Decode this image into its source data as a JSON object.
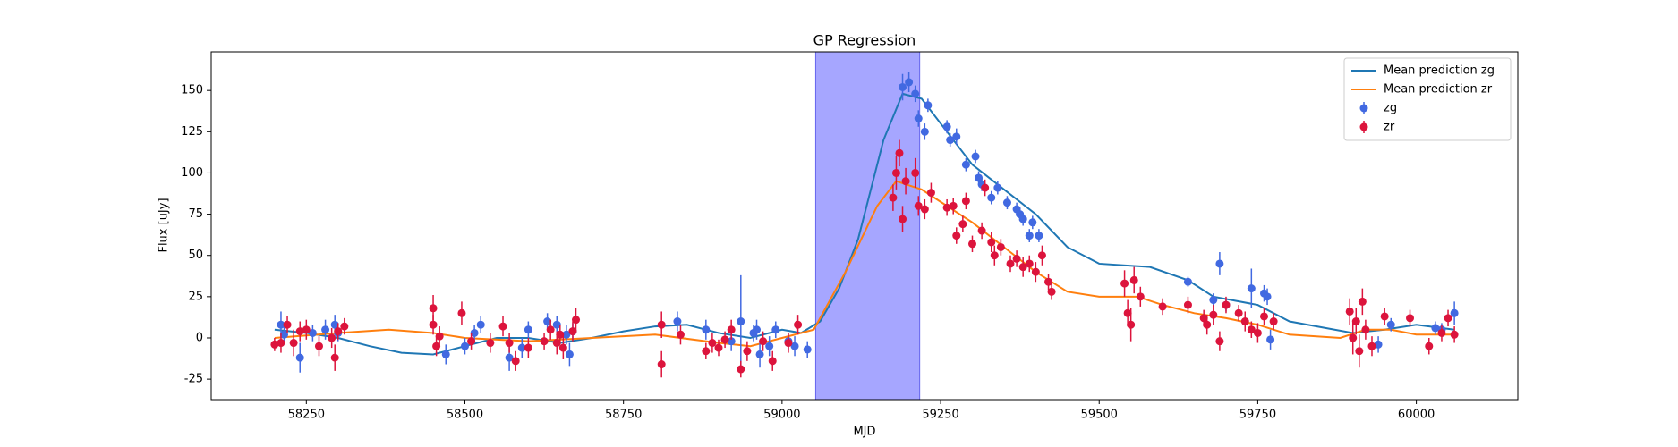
{
  "chart_data": {
    "type": "line",
    "title": "GP Regression",
    "x_label": "MJD",
    "y_label": "Flux [uJy]",
    "xlim": [
      58100,
      60160
    ],
    "ylim": [
      -37.4,
      173.4
    ],
    "xticks": [
      58250,
      58500,
      58750,
      59000,
      59250,
      59500,
      59750,
      60000
    ],
    "yticks": [
      -25,
      0,
      25,
      50,
      75,
      100,
      125,
      150
    ],
    "legend": "upper right",
    "shaded_span": {
      "x": [
        59053,
        59217
      ],
      "color": "#a6a6ff"
    },
    "series": [
      {
        "name": "Mean prediction zg",
        "style": "line",
        "color": "#1f77b4",
        "x": [
          58200,
          58250,
          58300,
          58350,
          58400,
          58450,
          58500,
          58550,
          58600,
          58650,
          58700,
          58750,
          58800,
          58850,
          58900,
          58950,
          59000,
          59030,
          59060,
          59090,
          59120,
          59160,
          59190,
          59220,
          59260,
          59300,
          59350,
          59400,
          59450,
          59500,
          59580,
          59640,
          59680,
          59750,
          59800,
          59900,
          59950,
          60000,
          60060
        ],
        "values": [
          5,
          3,
          0,
          -5,
          -9,
          -10,
          -5,
          0,
          0,
          -3,
          0,
          4,
          7,
          8,
          3,
          0,
          5,
          3,
          10,
          30,
          60,
          120,
          148,
          145,
          125,
          105,
          90,
          75,
          55,
          45,
          43,
          35,
          25,
          20,
          10,
          3,
          5,
          8,
          5
        ]
      },
      {
        "name": "Mean prediction zr",
        "style": "line",
        "color": "#ff7f0e",
        "x": [
          58200,
          58300,
          58380,
          58450,
          58500,
          58600,
          58700,
          58800,
          58900,
          58950,
          59000,
          59050,
          59100,
          59150,
          59180,
          59220,
          59260,
          59300,
          59350,
          59400,
          59450,
          59500,
          59560,
          59600,
          59650,
          59700,
          59750,
          59800,
          59880,
          59920,
          59960,
          60000,
          60060
        ],
        "values": [
          0,
          3,
          5,
          3,
          0,
          -2,
          0,
          2,
          -3,
          -5,
          0,
          5,
          40,
          80,
          95,
          90,
          80,
          70,
          55,
          40,
          28,
          25,
          25,
          20,
          15,
          12,
          8,
          2,
          0,
          5,
          5,
          2,
          2
        ]
      },
      {
        "name": "zg",
        "style": "errorbar",
        "color": "#4169e1",
        "x": [
          58210,
          58215,
          58240,
          58260,
          58280,
          58295,
          58300,
          58470,
          58500,
          58515,
          58525,
          58570,
          58590,
          58600,
          58630,
          58645,
          58660,
          58665,
          58670,
          58835,
          58880,
          58920,
          58935,
          58955,
          58960,
          58965,
          58980,
          58990,
          59010,
          59020,
          59040,
          59190,
          59200,
          59210,
          59215,
          59225,
          59230,
          59260,
          59265,
          59275,
          59290,
          59305,
          59310,
          59315,
          59330,
          59340,
          59355,
          59370,
          59375,
          59380,
          59390,
          59395,
          59405,
          59640,
          59680,
          59690,
          59700,
          59740,
          59760,
          59765,
          59770,
          59940,
          59960,
          60030,
          60040,
          60060
        ],
        "values": [
          8,
          2,
          -12,
          3,
          5,
          8,
          3,
          -10,
          -5,
          3,
          8,
          -12,
          -6,
          5,
          10,
          8,
          2,
          -10,
          4,
          10,
          5,
          -2,
          10,
          3,
          5,
          -10,
          -5,
          5,
          -2,
          -5,
          -7,
          152,
          155,
          148,
          133,
          125,
          141,
          128,
          120,
          122,
          105,
          110,
          97,
          93,
          85,
          91,
          82,
          78,
          75,
          72,
          62,
          70,
          62,
          34,
          23,
          45,
          20,
          30,
          27,
          25,
          -1,
          -4,
          8,
          6,
          5,
          15
        ],
        "errors": [
          8,
          6,
          9,
          5,
          6,
          6,
          5,
          6,
          5,
          5,
          5,
          8,
          6,
          5,
          5,
          5,
          6,
          7,
          5,
          6,
          6,
          6,
          28,
          5,
          6,
          8,
          6,
          5,
          5,
          6,
          5,
          8,
          6,
          5,
          5,
          5,
          4,
          4,
          4,
          5,
          4,
          4,
          4,
          4,
          4,
          4,
          4,
          4,
          4,
          4,
          4,
          4,
          4,
          3,
          4,
          7,
          4,
          12,
          5,
          5,
          6,
          5,
          4,
          4,
          4,
          7
        ]
      },
      {
        "name": "zr",
        "style": "errorbar",
        "color": "#dc143c",
        "x": [
          58200,
          58210,
          58220,
          58230,
          58240,
          58250,
          58270,
          58290,
          58295,
          58300,
          58310,
          58450,
          58450,
          58455,
          58460,
          58495,
          58510,
          58540,
          58560,
          58570,
          58580,
          58600,
          58625,
          58635,
          58645,
          58650,
          58655,
          58670,
          58675,
          58810,
          58810,
          58840,
          58880,
          58890,
          58900,
          58910,
          58920,
          58935,
          58945,
          58970,
          58985,
          59010,
          59025,
          59175,
          59180,
          59185,
          59190,
          59195,
          59210,
          59215,
          59225,
          59235,
          59260,
          59270,
          59275,
          59285,
          59290,
          59300,
          59315,
          59320,
          59330,
          59335,
          59345,
          59360,
          59370,
          59380,
          59390,
          59400,
          59410,
          59420,
          59425,
          59540,
          59545,
          59550,
          59555,
          59565,
          59600,
          59640,
          59665,
          59670,
          59680,
          59690,
          59700,
          59720,
          59730,
          59740,
          59750,
          59760,
          59775,
          59895,
          59900,
          59905,
          59910,
          59915,
          59920,
          59930,
          59950,
          59990,
          60020,
          60040,
          60050,
          60060
        ],
        "values": [
          -4,
          -3,
          8,
          -3,
          4,
          5,
          -5,
          0,
          -12,
          4,
          7,
          18,
          8,
          -5,
          1,
          15,
          -2,
          -3,
          7,
          -3,
          -14,
          -6,
          -2,
          5,
          -3,
          2,
          -6,
          4,
          11,
          8,
          -16,
          2,
          -8,
          -3,
          -6,
          -1,
          5,
          -19,
          -8,
          -2,
          -14,
          -3,
          8,
          85,
          100,
          112,
          72,
          95,
          100,
          80,
          78,
          88,
          79,
          80,
          62,
          69,
          83,
          57,
          65,
          91,
          58,
          50,
          55,
          45,
          48,
          43,
          45,
          40,
          50,
          34,
          28,
          33,
          15,
          8,
          35,
          25,
          19,
          20,
          12,
          8,
          14,
          -2,
          20,
          15,
          10,
          5,
          3,
          13,
          10,
          16,
          0,
          10,
          -8,
          22,
          5,
          -5,
          13,
          12,
          -5,
          3,
          12,
          2
        ],
        "errors": [
          4,
          6,
          5,
          8,
          6,
          6,
          6,
          6,
          8,
          5,
          5,
          8,
          6,
          6,
          6,
          7,
          5,
          6,
          6,
          6,
          6,
          6,
          5,
          6,
          7,
          6,
          7,
          6,
          7,
          8,
          8,
          6,
          5,
          6,
          5,
          5,
          6,
          5,
          6,
          6,
          6,
          6,
          6,
          8,
          10,
          8,
          8,
          8,
          9,
          6,
          6,
          6,
          5,
          5,
          5,
          5,
          5,
          5,
          5,
          5,
          6,
          6,
          5,
          5,
          5,
          6,
          5,
          6,
          6,
          5,
          5,
          8,
          8,
          10,
          8,
          6,
          5,
          5,
          5,
          6,
          6,
          6,
          5,
          5,
          6,
          5,
          6,
          5,
          5,
          8,
          10,
          8,
          10,
          8,
          6,
          6,
          5,
          5,
          5,
          5,
          5,
          5
        ]
      }
    ]
  }
}
